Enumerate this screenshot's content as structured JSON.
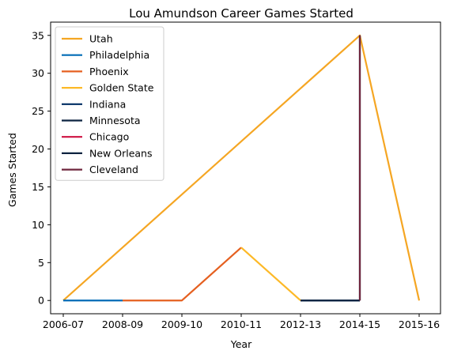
{
  "chart_data": {
    "type": "line",
    "title": "Lou Amundson Career Games Started",
    "xlabel": "Year",
    "ylabel": "Games Started",
    "x_ticks": [
      "2006-07",
      "2008-09",
      "2009-10",
      "2010-11",
      "2012-13",
      "2014-15",
      "2015-16"
    ],
    "y_ticks": [
      "0",
      "5",
      "10",
      "15",
      "20",
      "25",
      "30",
      "35"
    ],
    "ylim": [
      -1.75,
      36.75
    ],
    "grid": false,
    "legend_position": "upper-left",
    "series": [
      {
        "name": "Utah",
        "color": "#f5a623",
        "points": [
          [
            "2006-07",
            0
          ],
          [
            "2014-15",
            35
          ],
          [
            "2015-16",
            0
          ]
        ]
      },
      {
        "name": "Philadelphia",
        "color": "#006bb6",
        "points": [
          [
            "2006-07",
            0
          ],
          [
            "2008-09",
            0
          ]
        ]
      },
      {
        "name": "Phoenix",
        "color": "#e56020",
        "points": [
          [
            "2008-09",
            0
          ],
          [
            "2009-10",
            0
          ],
          [
            "2010-11",
            7
          ]
        ]
      },
      {
        "name": "Golden State",
        "color": "#fdb927",
        "points": [
          [
            "2010-11",
            7
          ],
          [
            "2012-13",
            0
          ]
        ]
      },
      {
        "name": "Indiana",
        "color": "#002d62",
        "points": [
          [
            "2012-13",
            0
          ],
          [
            "2014-15",
            0
          ]
        ]
      },
      {
        "name": "Minnesota",
        "color": "#0c2340",
        "points": [
          [
            "2012-13",
            0
          ],
          [
            "2014-15",
            0
          ]
        ]
      },
      {
        "name": "Chicago",
        "color": "#ce1141",
        "points": [
          [
            "2014-15",
            0
          ],
          [
            "2014-15",
            0
          ]
        ]
      },
      {
        "name": "New Orleans",
        "color": "#0c2340",
        "points": [
          [
            "2014-15",
            0
          ],
          [
            "2014-15",
            35
          ]
        ]
      },
      {
        "name": "Cleveland",
        "color": "#6f263d",
        "points": [
          [
            "2014-15",
            0
          ],
          [
            "2014-15",
            35
          ]
        ]
      }
    ]
  }
}
